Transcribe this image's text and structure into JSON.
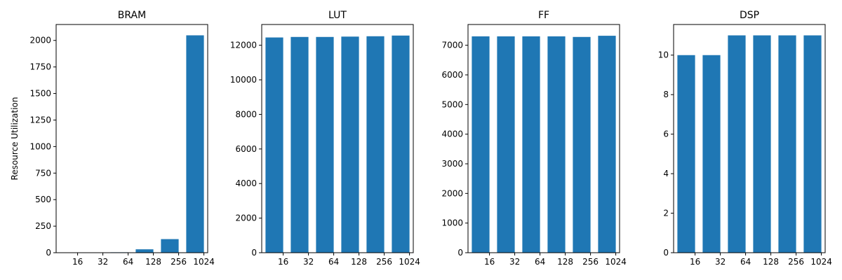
{
  "bar_color": "#1f77b4",
  "chart_data": [
    {
      "type": "bar",
      "title": "BRAM",
      "ylabel": "Resource Utilization",
      "x_tick_labels": [
        "16",
        "32",
        "64",
        "128",
        "256",
        "1024"
      ],
      "values": [
        1,
        2,
        4,
        32,
        128,
        2048
      ],
      "ylim": [
        0,
        2150
      ],
      "yticks": [
        0,
        250,
        500,
        750,
        1000,
        1250,
        1500,
        1750,
        2000
      ],
      "grid": false
    },
    {
      "type": "bar",
      "title": "LUT",
      "x_tick_labels": [
        "16",
        "32",
        "64",
        "128",
        "256",
        "1024"
      ],
      "values": [
        12450,
        12480,
        12480,
        12500,
        12520,
        12560
      ],
      "ylim": [
        0,
        13200
      ],
      "yticks": [
        0,
        2000,
        4000,
        6000,
        8000,
        10000,
        12000
      ],
      "grid": false
    },
    {
      "type": "bar",
      "title": "FF",
      "x_tick_labels": [
        "16",
        "32",
        "64",
        "128",
        "256",
        "1024"
      ],
      "values": [
        7300,
        7300,
        7300,
        7300,
        7280,
        7320
      ],
      "ylim": [
        0,
        7700
      ],
      "yticks": [
        0,
        1000,
        2000,
        3000,
        4000,
        5000,
        6000,
        7000
      ],
      "grid": false
    },
    {
      "type": "bar",
      "title": "DSP",
      "x_tick_labels": [
        "16",
        "32",
        "64",
        "128",
        "256",
        "1024"
      ],
      "values": [
        10,
        10,
        11,
        11,
        11,
        11
      ],
      "ylim": [
        0,
        11.55
      ],
      "yticks": [
        0,
        2,
        4,
        6,
        8,
        10
      ],
      "grid": false
    }
  ]
}
